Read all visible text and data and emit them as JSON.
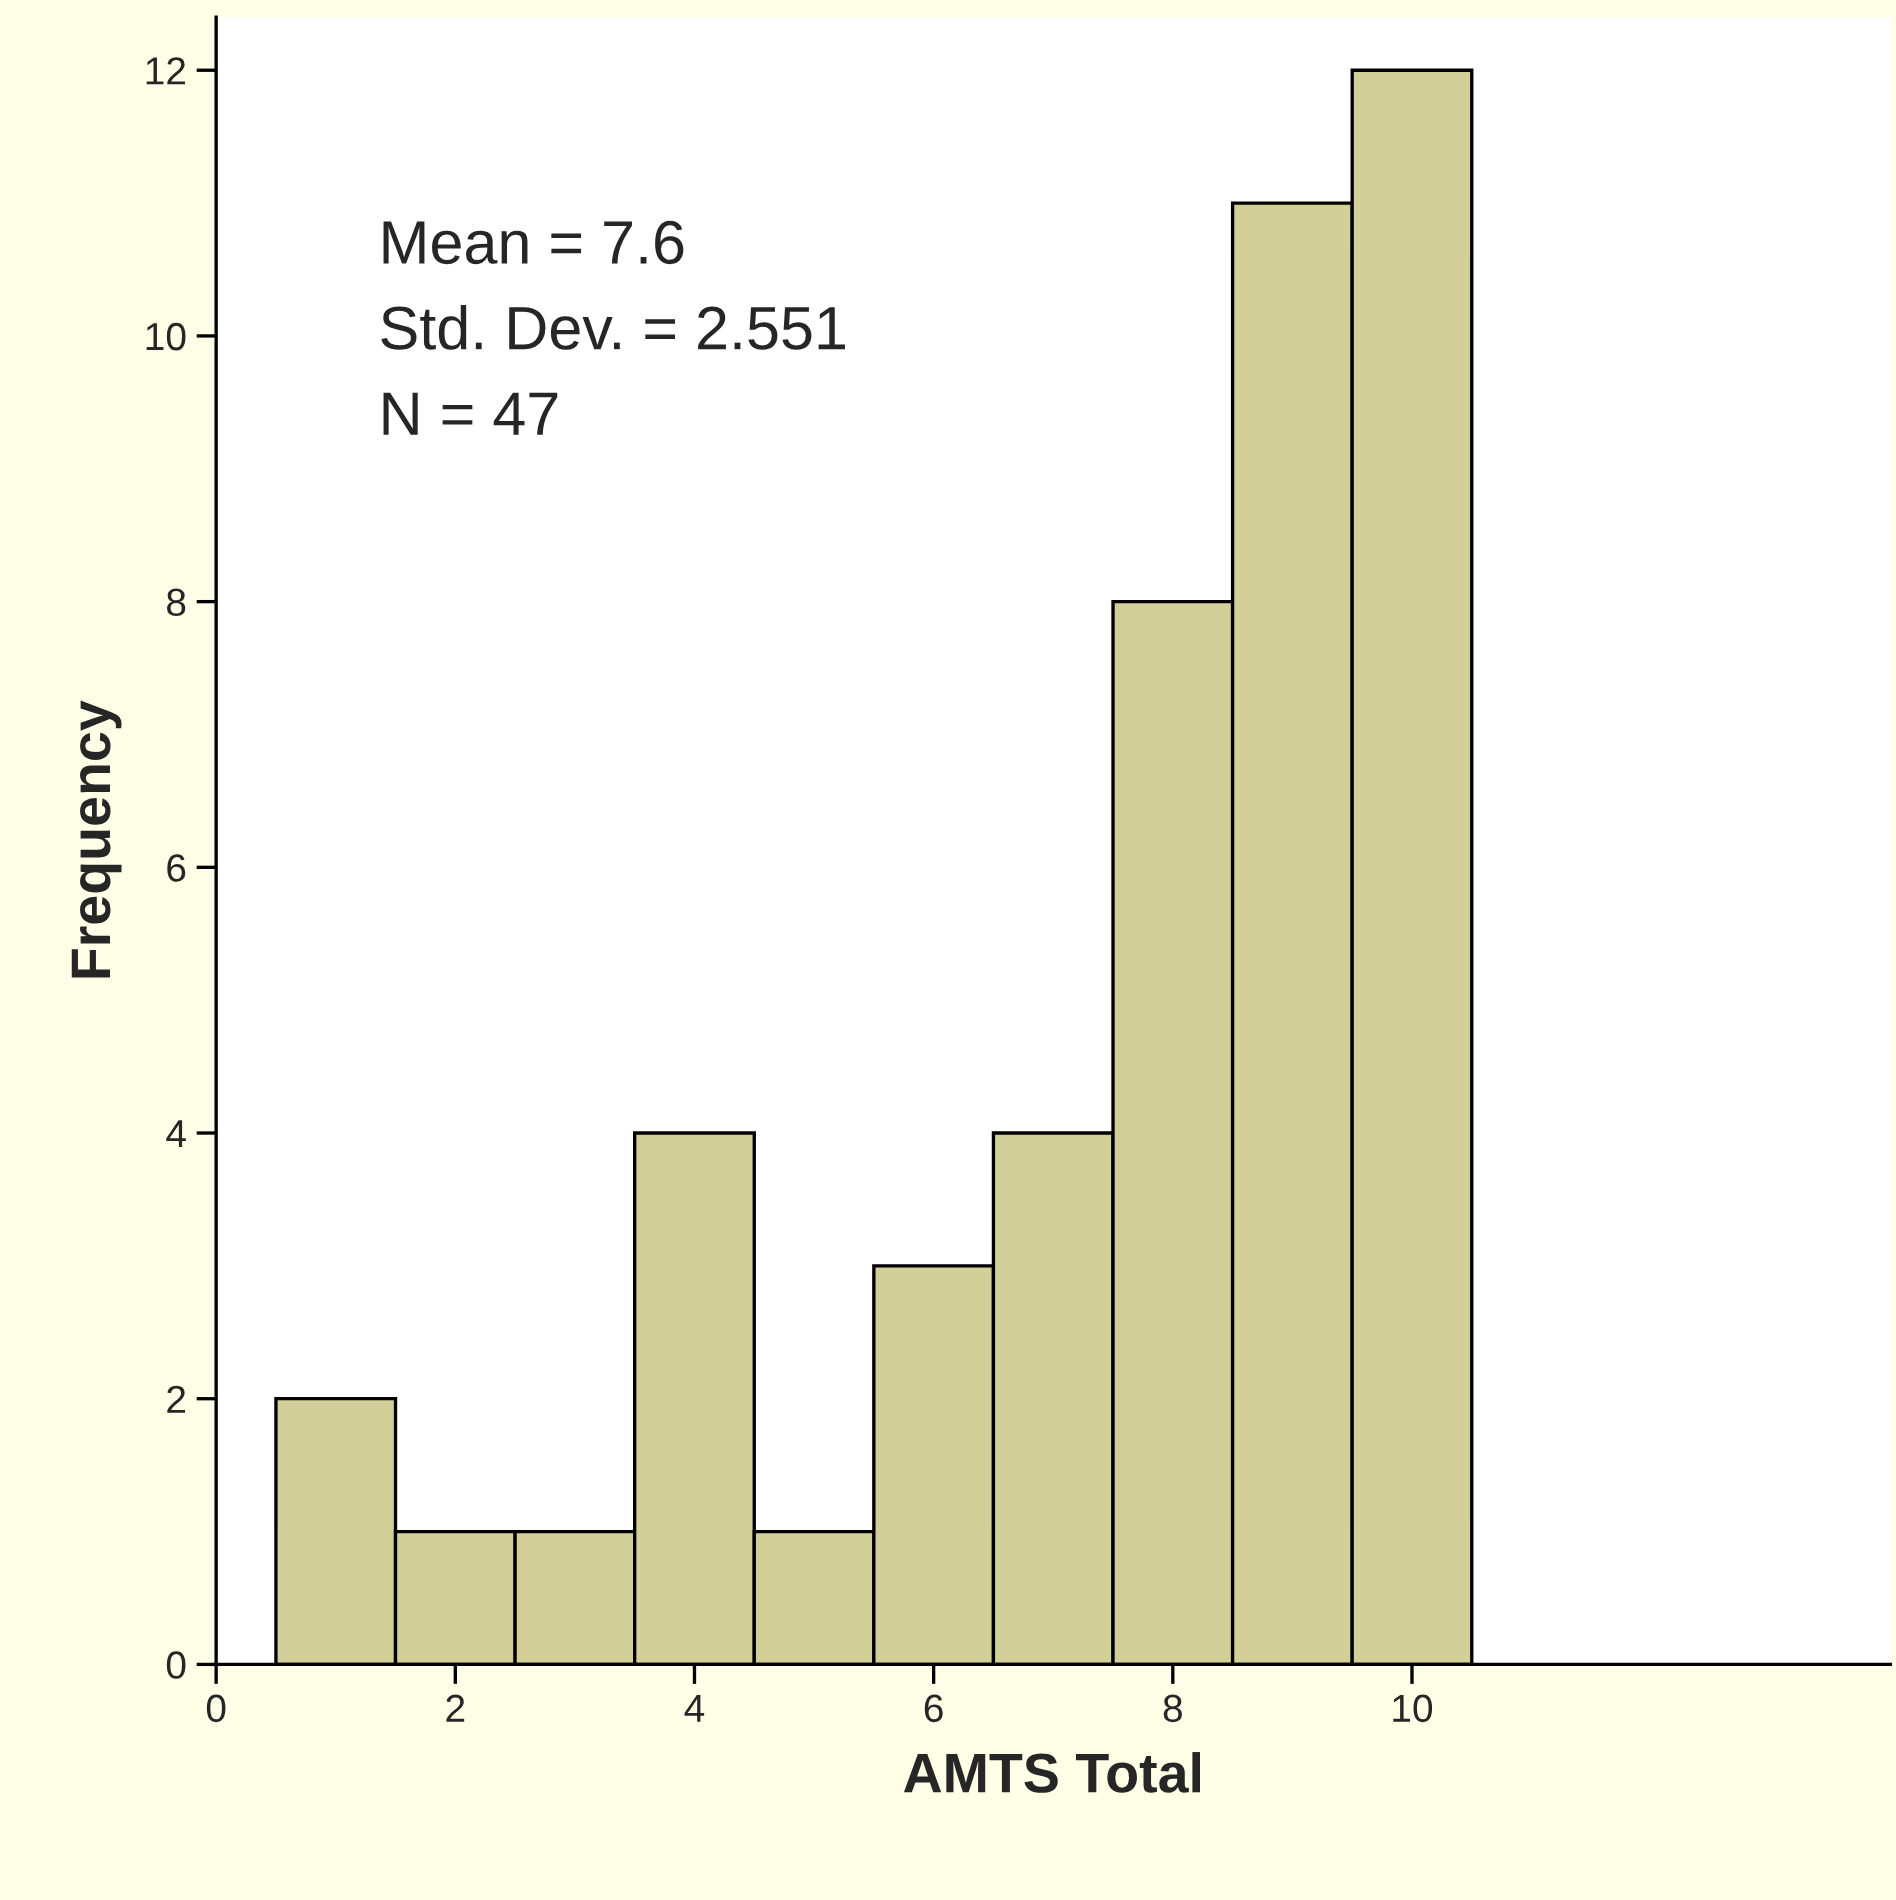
{
  "chart_data": {
    "type": "histogram",
    "xlabel": "AMTS Total",
    "ylabel": "Frequency",
    "bins": [
      0.5,
      1.5,
      2.5,
      3.5,
      4.5,
      5.5,
      6.5,
      7.5,
      8.5,
      9.5,
      10.5
    ],
    "values": [
      2,
      1,
      1,
      4,
      1,
      3,
      4,
      8,
      11,
      12
    ],
    "color": "#d3cf99",
    "xlim": [
      0,
      14
    ],
    "xticks": [
      0,
      2,
      4,
      6,
      8,
      10
    ],
    "ylim": [
      0,
      12.4
    ],
    "yticks": [
      0,
      2,
      4,
      6,
      8,
      10,
      12
    ],
    "grid": false,
    "annotations": [
      "Mean = 7.6",
      "Std. Dev. = 2.551",
      "N = 47"
    ]
  }
}
